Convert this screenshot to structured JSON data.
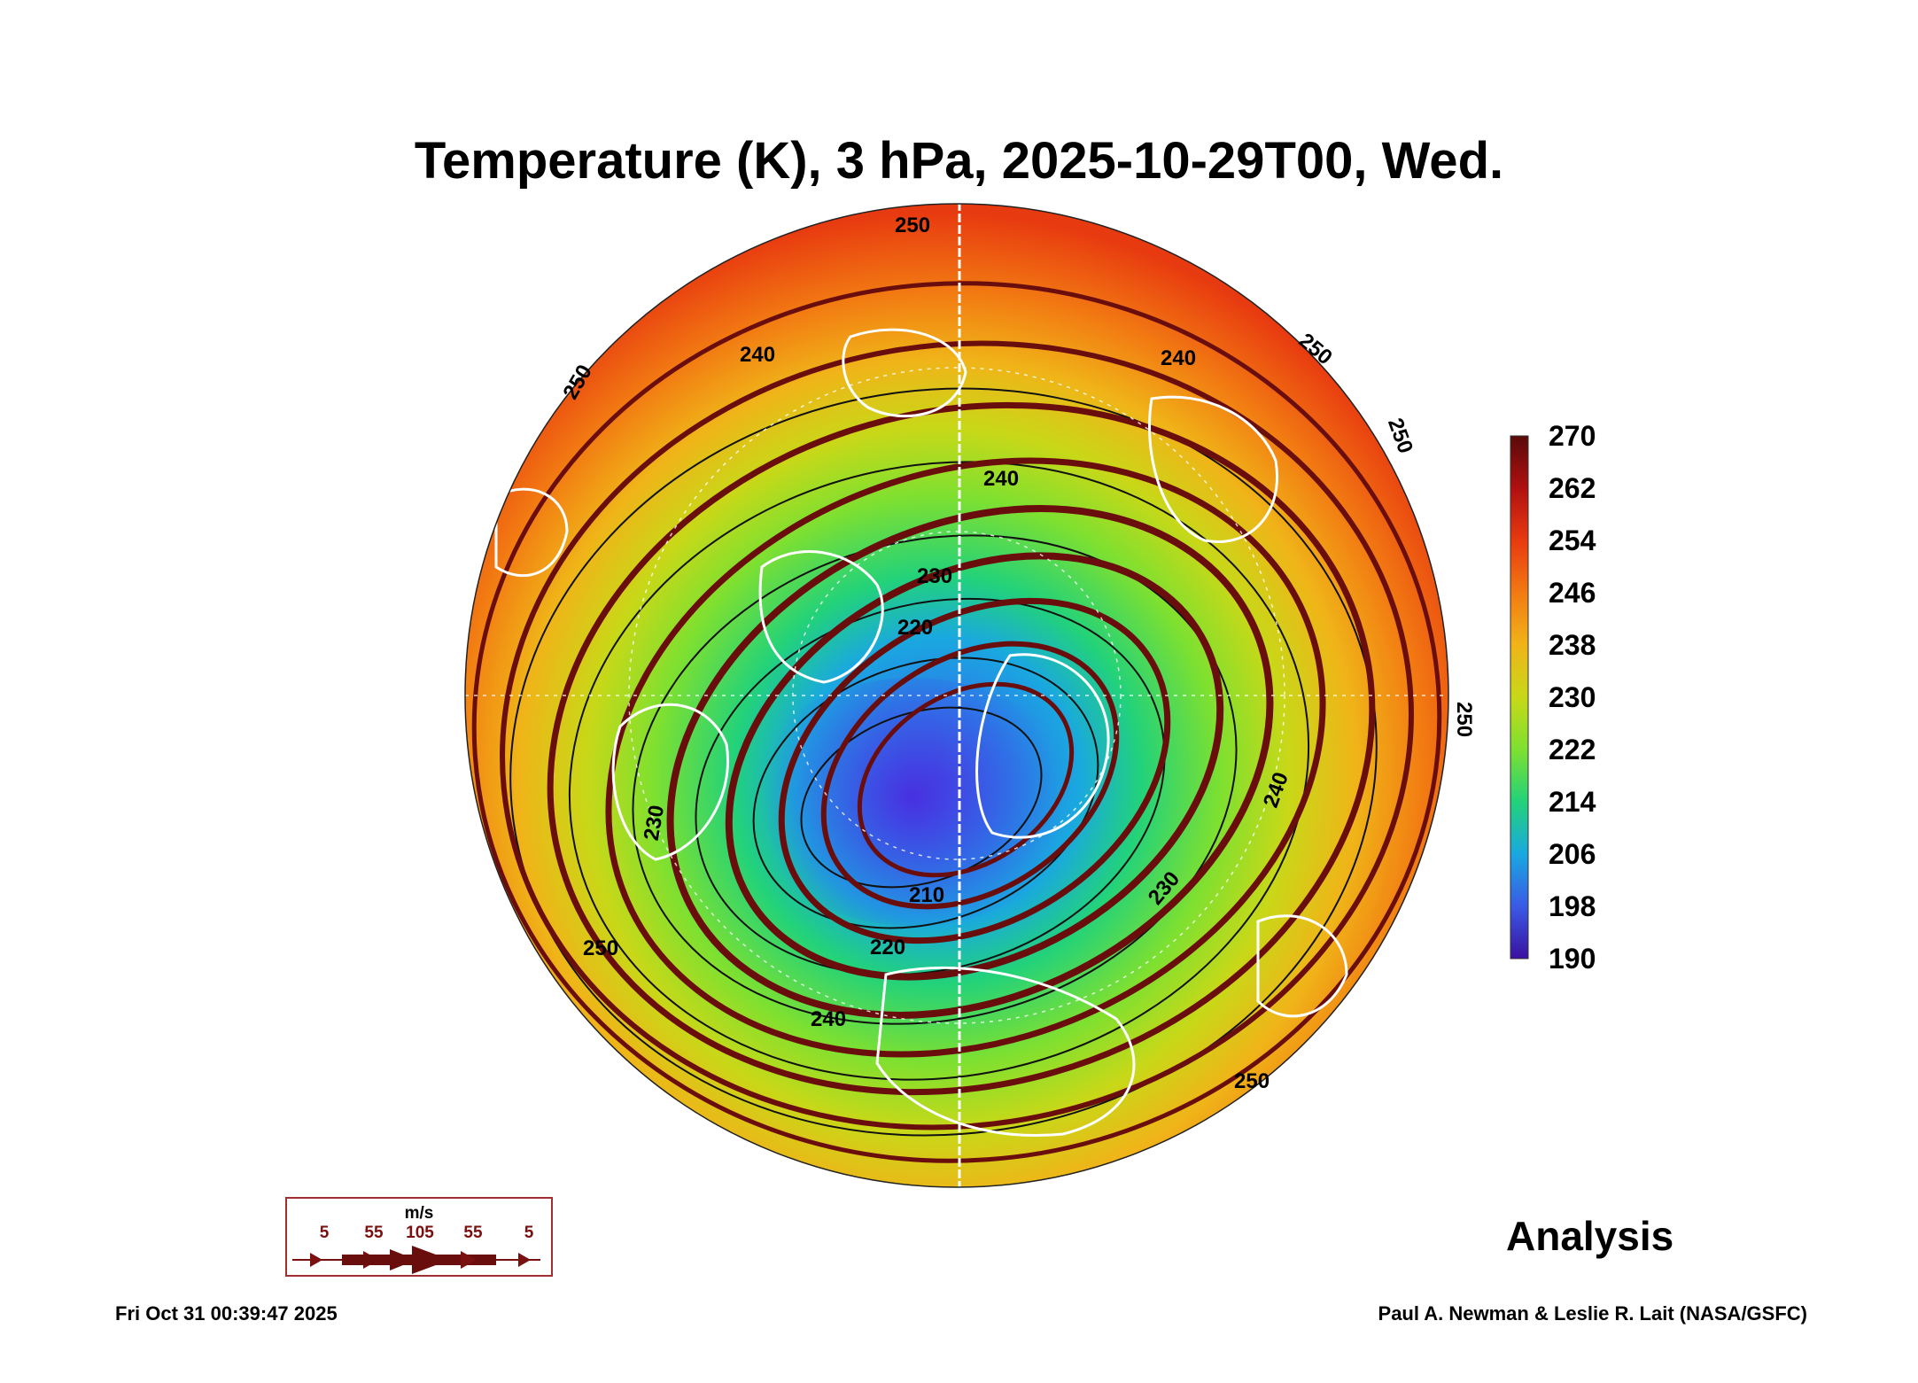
{
  "title": "Temperature (K), 3 hPa, 2025-10-29T00, Wed.",
  "colorbar": {
    "ticks": [
      "270",
      "262",
      "254",
      "246",
      "238",
      "230",
      "222",
      "214",
      "206",
      "198",
      "190"
    ],
    "colors": [
      "#5a0a0a",
      "#b01010",
      "#e83a10",
      "#f27a12",
      "#f0b418",
      "#c8d818",
      "#7ee030",
      "#22d27a",
      "#1aa8e0",
      "#3a5ae6",
      "#3a10a0"
    ]
  },
  "contour_labels": [
    "250",
    "240",
    "250",
    "250",
    "240",
    "250",
    "240",
    "230",
    "220",
    "250",
    "210",
    "230",
    "220",
    "230",
    "240",
    "250",
    "240",
    "250"
  ],
  "wind_legend": {
    "unit": "m/s",
    "values": [
      "5",
      "55",
      "105",
      "55",
      "5"
    ]
  },
  "analysis_label": "Analysis",
  "timestamp": "Fri Oct 31 00:39:47 2025",
  "credit": "Paul A. Newman & Leslie R. Lait (NASA/GSFC)"
}
